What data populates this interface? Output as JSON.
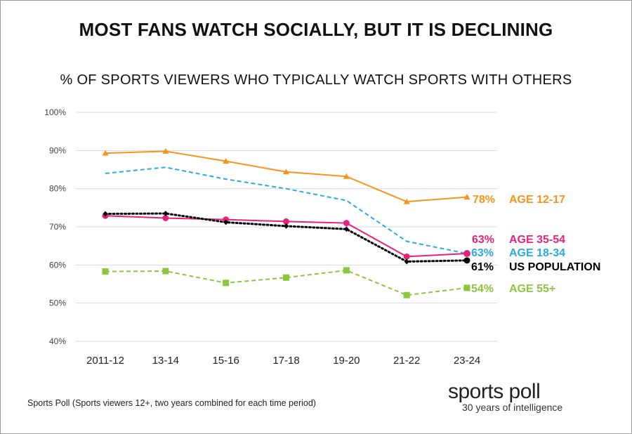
{
  "title": "MOST FANS WATCH SOCIALLY, BUT IT IS DECLINING",
  "subtitle": "% OF SPORTS VIEWERS WHO TYPICALLY WATCH SPORTS WITH OTHERS",
  "source": "Sports Poll (Sports viewers 12+, two years combined for each time period)",
  "brand": {
    "name": "sports poll",
    "tagline": "30 years of intelligence"
  },
  "chart_data": {
    "type": "line",
    "title": "% OF SPORTS VIEWERS WHO TYPICALLY WATCH SPORTS WITH OTHERS",
    "categories": [
      "2011-12",
      "13-14",
      "15-16",
      "17-18",
      "19-20",
      "21-22",
      "23-24"
    ],
    "y_ticks": [
      "40%",
      "50%",
      "60%",
      "70%",
      "80%",
      "90%",
      "100%"
    ],
    "ylim": [
      40,
      100
    ],
    "grid": true,
    "series": [
      {
        "name": "AGE 12-17",
        "values": [
          89.3,
          89.8,
          87.2,
          84.4,
          83.2,
          76.6,
          77.8
        ],
        "end_label": "78%",
        "color": "#f7941d",
        "style": "solid",
        "marker": "triangle"
      },
      {
        "name": "AGE 18-34",
        "values": [
          84.0,
          85.6,
          82.5,
          80.0,
          76.9,
          66.2,
          63.0
        ],
        "end_label": "63%",
        "color": "#29abe2",
        "style": "dashed",
        "marker": "none"
      },
      {
        "name": "AGE 35-54",
        "values": [
          72.9,
          72.3,
          71.9,
          71.4,
          71.0,
          62.2,
          63.0
        ],
        "end_label": "63%",
        "color": "#e6237b",
        "style": "solid",
        "marker": "circle"
      },
      {
        "name": "US POPULATION",
        "values": [
          73.4,
          73.5,
          71.2,
          70.2,
          69.4,
          60.9,
          61.2
        ],
        "end_label": "61%",
        "color": "#000000",
        "style": "dotted",
        "marker": "diamond"
      },
      {
        "name": "AGE 55+",
        "values": [
          58.3,
          58.4,
          55.3,
          56.7,
          58.6,
          52.1,
          54.0
        ],
        "end_label": "54%",
        "color": "#8cc63f",
        "style": "dashed",
        "marker": "square"
      }
    ]
  }
}
